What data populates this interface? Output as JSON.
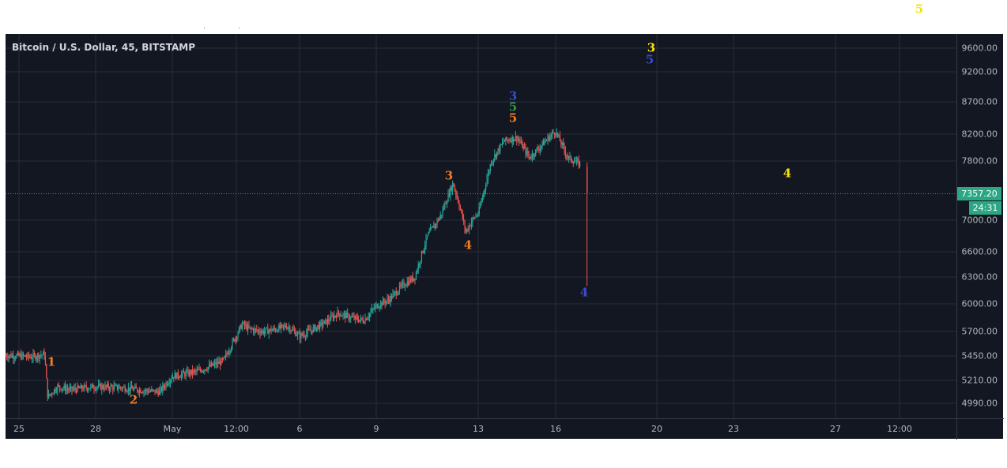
{
  "header": {
    "title": "Bitcoin / U.S. Dollar, 45, BITSTAMP"
  },
  "price_axis": {
    "ticks": [
      "9600.00",
      "9200.00",
      "8700.00",
      "8200.00",
      "7800.00",
      "7000.00",
      "6600.00",
      "6300.00",
      "6000.00",
      "5700.00",
      "5450.00",
      "5210.00",
      "4990.00"
    ],
    "last_price": "7357.20",
    "countdown": "24:31"
  },
  "time_axis": {
    "ticks": [
      "25",
      "28",
      "May",
      "12:00",
      "6",
      "9",
      "13",
      "16",
      "20",
      "23",
      "27",
      "12:00"
    ]
  },
  "colors": {
    "background": "#131722",
    "grid": "#2a2e39",
    "candle_up": "#26a69a",
    "candle_down": "#ef5350",
    "last_price_line": "#2ba784",
    "wave_orange": "#f57c22",
    "wave_blue": "#3b4bd0",
    "wave_green": "#2e9b46",
    "wave_yellow": "#f5e10f"
  },
  "wave_labels": [
    {
      "text": "1",
      "color": "orange"
    },
    {
      "text": "2",
      "color": "orange"
    },
    {
      "text": "3",
      "color": "orange"
    },
    {
      "text": "4",
      "color": "orange"
    },
    {
      "text": "5",
      "color": "orange"
    },
    {
      "text": "5",
      "color": "green"
    },
    {
      "text": "3",
      "color": "blue"
    },
    {
      "text": "4",
      "color": "blue"
    },
    {
      "text": "5",
      "color": "blue"
    },
    {
      "text": "3",
      "color": "yellow"
    },
    {
      "text": "4",
      "color": "yellow"
    },
    {
      "text": "5",
      "color": "yellow"
    }
  ],
  "chart_data": {
    "type": "candlestick",
    "title": "Bitcoin / U.S. Dollar, 45, BITSTAMP",
    "symbol": "BTCUSD",
    "interval": "45",
    "exchange": "BITSTAMP",
    "x_range": [
      "Apr 24",
      "May 30"
    ],
    "ylim": [
      4900,
      9750
    ],
    "last_price": 7357.2,
    "grid": true,
    "price_path": [
      {
        "x": "Apr 24",
        "y": 5460
      },
      {
        "x": "Apr 25",
        "y": 5450
      },
      {
        "x": "Apr 25 12:00",
        "y": 5440
      },
      {
        "x": "Apr 26",
        "y": 5470
      },
      {
        "x": "Apr 26 03:00",
        "y": 5050
      },
      {
        "x": "Apr 26 12:00",
        "y": 5150
      },
      {
        "x": "Apr 27",
        "y": 5120
      },
      {
        "x": "Apr 28",
        "y": 5150
      },
      {
        "x": "Apr 29",
        "y": 5140
      },
      {
        "x": "Apr 30",
        "y": 5110
      },
      {
        "x": "Apr 30 12:00",
        "y": 5100
      },
      {
        "x": "May 1",
        "y": 5250
      },
      {
        "x": "May 2",
        "y": 5300
      },
      {
        "x": "May 3",
        "y": 5400
      },
      {
        "x": "May 3 18:00",
        "y": 5780
      },
      {
        "x": "May 4",
        "y": 5730
      },
      {
        "x": "May 4 12:00",
        "y": 5700
      },
      {
        "x": "May 5",
        "y": 5720
      },
      {
        "x": "May 5 12:00",
        "y": 5760
      },
      {
        "x": "May 6",
        "y": 5650
      },
      {
        "x": "May 7",
        "y": 5800
      },
      {
        "x": "May 7 12:00",
        "y": 5900
      },
      {
        "x": "May 8",
        "y": 5850
      },
      {
        "x": "May 8 12:00",
        "y": 5820
      },
      {
        "x": "May 9",
        "y": 5980
      },
      {
        "x": "May 9 12:00",
        "y": 6050
      },
      {
        "x": "May 10",
        "y": 6200
      },
      {
        "x": "May 10 12:00",
        "y": 6300
      },
      {
        "x": "May 11",
        "y": 6800
      },
      {
        "x": "May 11 12:00",
        "y": 7050
      },
      {
        "x": "May 12",
        "y": 7500
      },
      {
        "x": "May 12 06:00",
        "y": 7200
      },
      {
        "x": "May 12 12:00",
        "y": 6850
      },
      {
        "x": "May 12 18:00",
        "y": 7000
      },
      {
        "x": "May 13",
        "y": 7100
      },
      {
        "x": "May 13 12:00",
        "y": 7800
      },
      {
        "x": "May 14",
        "y": 8100
      },
      {
        "x": "May 14 12:00",
        "y": 8150
      },
      {
        "x": "May 15",
        "y": 7850
      },
      {
        "x": "May 15 12:00",
        "y": 8050
      },
      {
        "x": "May 16",
        "y": 8250
      },
      {
        "x": "May 16 12:00",
        "y": 7850
      },
      {
        "x": "May 17",
        "y": 7750
      },
      {
        "x": "May 17 06:00",
        "y": 7330
      }
    ]
  }
}
